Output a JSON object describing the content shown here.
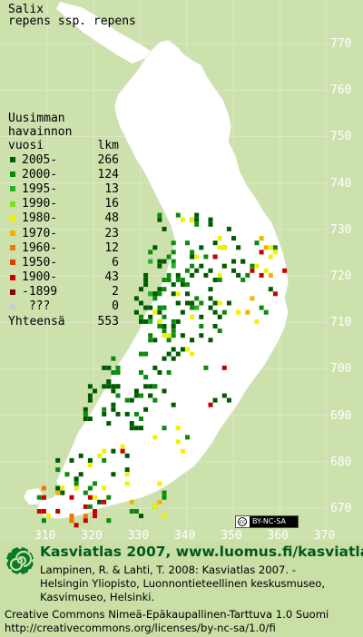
{
  "title": {
    "genus": "Salix",
    "taxon": "repens ssp. repens"
  },
  "legend": {
    "heading_line1": "Uusimman",
    "heading_line2": "havainnon",
    "heading_vuosi": "vuosi",
    "heading_lkm": "lkm",
    "rows": [
      {
        "label": "2005-",
        "count": "266",
        "color": "#005a00"
      },
      {
        "label": "2000-",
        "count": "124",
        "color": "#0c8a0c"
      },
      {
        "label": "1995-",
        "count": "13",
        "color": "#22b222"
      },
      {
        "label": "1990-",
        "count": "16",
        "color": "#7ee01a"
      },
      {
        "label": "1980-",
        "count": "48",
        "color": "#f2f200"
      },
      {
        "label": "1970-",
        "count": "23",
        "color": "#f2b400"
      },
      {
        "label": "1960-",
        "count": "12",
        "color": "#f07800"
      },
      {
        "label": "1950-",
        "count": "6",
        "color": "#e23c00"
      },
      {
        "label": "1900-",
        "count": "43",
        "color": "#c80000"
      },
      {
        "label": "-1899",
        "count": "2",
        "color": "#8c0000"
      },
      {
        "label": " ???",
        "count": "0",
        "color": "#cccccc"
      }
    ],
    "total_label": "Yhteensä",
    "total_count": "553"
  },
  "grid": {
    "y_labels": [
      "770",
      "760",
      "750",
      "740",
      "730",
      "720",
      "710",
      "700",
      "690",
      "680",
      "670"
    ],
    "x_labels": [
      "310",
      "320",
      "330",
      "340",
      "350",
      "360",
      "370"
    ]
  },
  "license_badge": {
    "symbol": "cc",
    "text": "BY-NC-SA"
  },
  "footer": {
    "site_title": "Kasviatlas 2007, www.luomus.fi/kasviatlas",
    "citation_line1": "Lampinen, R. & Lahti, T. 2008: Kasviatlas 2007. -",
    "citation_line2": "Helsingin Yliopisto, Luonnontieteellinen keskusmuseo,",
    "citation_line3": "Kasvimuseo, Helsinki.",
    "license_line1": "Creative Commons Nimeä-Epäkaupallinen-Tarttuva 1.0 Suomi",
    "license_line2": "http://creativecommons.org/licenses/by-nc-sa/1.0/fi"
  },
  "colors": {
    "map_background": "#cde1ad",
    "land": "#ffffff",
    "grid_line": "#dfe8d2",
    "footer_title": "#005a1e"
  },
  "icons": {
    "site_logo": "spiral-flower-icon"
  }
}
